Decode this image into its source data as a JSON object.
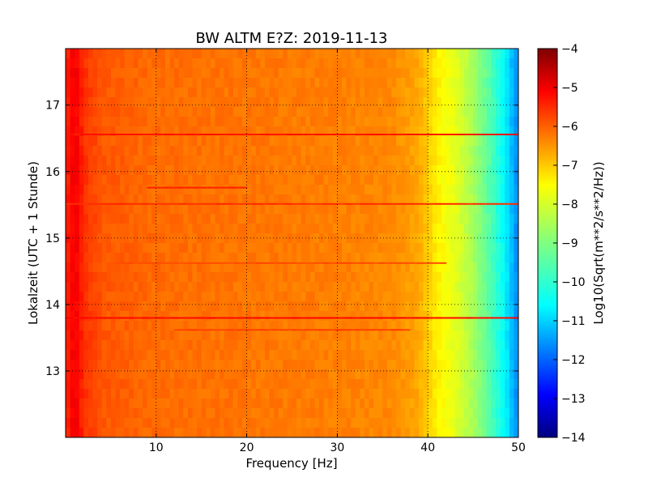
{
  "chart_data": {
    "type": "heatmap",
    "title": "BW ALTM E?Z: 2019-11-13",
    "xlabel": "Frequency [Hz]",
    "ylabel": "Lokalzeit (UTC + 1 Stunde)",
    "xlim": [
      0,
      50
    ],
    "ylim": [
      17.85,
      12.0
    ],
    "x_ticks": [
      10,
      20,
      30,
      40,
      50
    ],
    "y_ticks": [
      13,
      14,
      15,
      16,
      17
    ],
    "grid": true,
    "colorbar": {
      "label": "Log10(Sqrt(m**2/s**2/Hz))",
      "range": [
        -14,
        -4
      ],
      "ticks": [
        -4,
        -5,
        -6,
        -7,
        -8,
        -9,
        -10,
        -11,
        -12,
        -13,
        -14
      ],
      "colormap": "jet"
    },
    "baseline_profile": {
      "frequency_hz": [
        0.1,
        1.0,
        2.0,
        4.0,
        10.0,
        20.0,
        30.0,
        36.0,
        39.0,
        41.0,
        43.0,
        45.0,
        47.0,
        48.5,
        49.5,
        50.0
      ],
      "value": [
        -5.6,
        -5.1,
        -5.7,
        -6.1,
        -6.3,
        -6.4,
        -6.5,
        -6.6,
        -6.9,
        -7.6,
        -8.0,
        -8.6,
        -9.5,
        -10.3,
        -11.1,
        -11.5
      ]
    },
    "bands": [
      {
        "time": 13.84,
        "width_h": 0.06,
        "f_from": 0,
        "f_to": 50,
        "value": -5.3
      },
      {
        "time": 16.6,
        "width_h": 0.06,
        "f_from": 0,
        "f_to": 50,
        "value": -5.4
      },
      {
        "time": 15.55,
        "width_h": 0.05,
        "f_from": 0,
        "f_to": 50,
        "value": -5.7
      },
      {
        "time": 15.85,
        "width_h": 0.16,
        "f_from": 9,
        "f_to": 20,
        "value": -5.6
      },
      {
        "time": 13.65,
        "width_h": 0.04,
        "f_from": 12,
        "f_to": 38,
        "value": -5.9
      },
      {
        "time": 14.65,
        "width_h": 0.03,
        "f_from": 5,
        "f_to": 42,
        "value": -6.0
      }
    ]
  }
}
